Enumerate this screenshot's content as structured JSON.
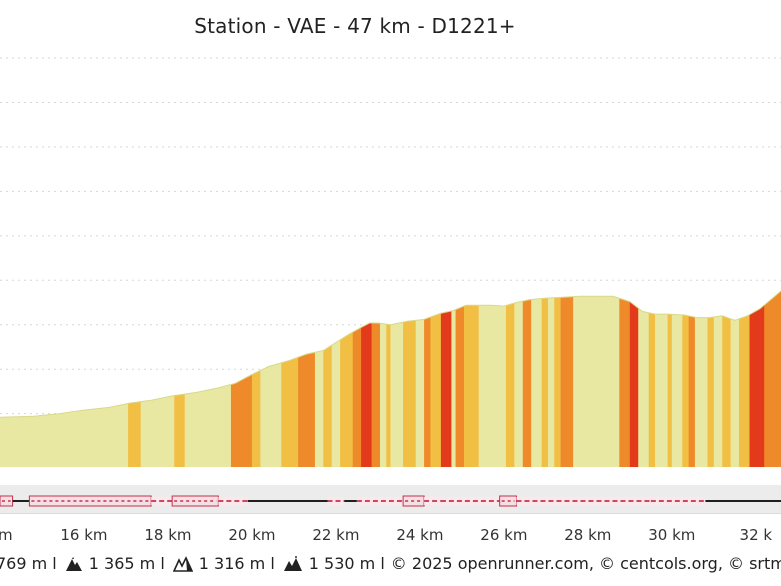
{
  "chart_data": {
    "type": "area",
    "title": "Station - VAE - 47 km - D1221+",
    "xlabel": "",
    "ylabel": "",
    "x_unit": "km",
    "xlim": [
      14,
      32.6
    ],
    "ylim": [
      1240,
      1700
    ],
    "grid": true,
    "x_ticks": [
      "16 km",
      "18 km",
      "20 km",
      "22 km",
      "24 km",
      "26 km",
      "28 km",
      "30 km",
      "32 k"
    ],
    "x_tick_values": [
      16,
      18,
      20,
      22,
      24,
      26,
      28,
      30,
      32
    ],
    "left_edge_label": "m",
    "profile": {
      "x": [
        14.0,
        14.8,
        15.4,
        16.0,
        16.6,
        17.1,
        17.6,
        18.1,
        18.7,
        19.2,
        19.6,
        20.0,
        20.4,
        20.9,
        21.3,
        21.7,
        22.0,
        22.3,
        22.6,
        22.8,
        23.0,
        23.3,
        23.7,
        24.1,
        24.5,
        24.8,
        25.1,
        25.4,
        25.7,
        26.0,
        26.3,
        26.6,
        27.0,
        27.4,
        27.8,
        28.2,
        28.6,
        29.0,
        29.3,
        29.6,
        29.9,
        30.3,
        30.6,
        30.9,
        31.2,
        31.5,
        31.8,
        32.1,
        32.4,
        32.6
      ],
      "y": [
        1296,
        1297,
        1300,
        1304,
        1307,
        1312,
        1315,
        1320,
        1324,
        1329,
        1334,
        1344,
        1353,
        1360,
        1367,
        1371,
        1380,
        1389,
        1397,
        1402,
        1402,
        1400,
        1404,
        1406,
        1413,
        1416,
        1422,
        1422,
        1422,
        1421,
        1425,
        1428,
        1430,
        1431,
        1432,
        1432,
        1432,
        1426,
        1415,
        1412,
        1412,
        1411,
        1408,
        1408,
        1410,
        1405,
        1410,
        1418,
        1430,
        1438
      ]
    },
    "slope_colors": {
      "easy": "#e8e8a2",
      "moderate": "#f2bf45",
      "steep": "#ee8a2a",
      "very_steep": "#e33a1c"
    },
    "slope_segments": [
      {
        "x0": 14.0,
        "x1": 17.05,
        "level": "easy"
      },
      {
        "x0": 17.05,
        "x1": 17.35,
        "level": "moderate"
      },
      {
        "x0": 17.35,
        "x1": 18.15,
        "level": "easy"
      },
      {
        "x0": 18.15,
        "x1": 18.4,
        "level": "moderate"
      },
      {
        "x0": 18.4,
        "x1": 19.5,
        "level": "easy"
      },
      {
        "x0": 19.5,
        "x1": 20.0,
        "level": "steep"
      },
      {
        "x0": 20.0,
        "x1": 20.2,
        "level": "moderate"
      },
      {
        "x0": 20.2,
        "x1": 20.7,
        "level": "easy"
      },
      {
        "x0": 20.7,
        "x1": 21.1,
        "level": "moderate"
      },
      {
        "x0": 21.1,
        "x1": 21.5,
        "level": "steep"
      },
      {
        "x0": 21.5,
        "x1": 21.7,
        "level": "easy"
      },
      {
        "x0": 21.7,
        "x1": 21.9,
        "level": "moderate"
      },
      {
        "x0": 21.9,
        "x1": 22.1,
        "level": "easy"
      },
      {
        "x0": 22.1,
        "x1": 22.4,
        "level": "moderate"
      },
      {
        "x0": 22.4,
        "x1": 22.6,
        "level": "steep"
      },
      {
        "x0": 22.6,
        "x1": 22.85,
        "level": "very_steep"
      },
      {
        "x0": 22.85,
        "x1": 23.05,
        "level": "steep"
      },
      {
        "x0": 23.05,
        "x1": 23.2,
        "level": "easy"
      },
      {
        "x0": 23.2,
        "x1": 23.3,
        "level": "moderate"
      },
      {
        "x0": 23.3,
        "x1": 23.6,
        "level": "easy"
      },
      {
        "x0": 23.6,
        "x1": 23.9,
        "level": "moderate"
      },
      {
        "x0": 23.9,
        "x1": 24.1,
        "level": "easy"
      },
      {
        "x0": 24.1,
        "x1": 24.25,
        "level": "steep"
      },
      {
        "x0": 24.25,
        "x1": 24.5,
        "level": "moderate"
      },
      {
        "x0": 24.5,
        "x1": 24.75,
        "level": "very_steep"
      },
      {
        "x0": 24.75,
        "x1": 24.85,
        "level": "easy"
      },
      {
        "x0": 24.85,
        "x1": 25.05,
        "level": "steep"
      },
      {
        "x0": 25.05,
        "x1": 25.4,
        "level": "moderate"
      },
      {
        "x0": 25.4,
        "x1": 26.05,
        "level": "easy"
      },
      {
        "x0": 26.05,
        "x1": 26.25,
        "level": "moderate"
      },
      {
        "x0": 26.25,
        "x1": 26.45,
        "level": "easy"
      },
      {
        "x0": 26.45,
        "x1": 26.65,
        "level": "steep"
      },
      {
        "x0": 26.65,
        "x1": 26.9,
        "level": "easy"
      },
      {
        "x0": 26.9,
        "x1": 27.05,
        "level": "moderate"
      },
      {
        "x0": 27.05,
        "x1": 27.2,
        "level": "easy"
      },
      {
        "x0": 27.2,
        "x1": 27.35,
        "level": "moderate"
      },
      {
        "x0": 27.35,
        "x1": 27.65,
        "level": "steep"
      },
      {
        "x0": 27.65,
        "x1": 28.75,
        "level": "easy"
      },
      {
        "x0": 28.75,
        "x1": 29.0,
        "level": "steep"
      },
      {
        "x0": 29.0,
        "x1": 29.2,
        "level": "very_steep"
      },
      {
        "x0": 29.2,
        "x1": 29.45,
        "level": "easy"
      },
      {
        "x0": 29.45,
        "x1": 29.6,
        "level": "moderate"
      },
      {
        "x0": 29.6,
        "x1": 29.9,
        "level": "easy"
      },
      {
        "x0": 29.9,
        "x1": 30.0,
        "level": "moderate"
      },
      {
        "x0": 30.0,
        "x1": 30.25,
        "level": "easy"
      },
      {
        "x0": 30.25,
        "x1": 30.4,
        "level": "moderate"
      },
      {
        "x0": 30.4,
        "x1": 30.55,
        "level": "steep"
      },
      {
        "x0": 30.55,
        "x1": 30.85,
        "level": "easy"
      },
      {
        "x0": 30.85,
        "x1": 31.0,
        "level": "moderate"
      },
      {
        "x0": 31.0,
        "x1": 31.2,
        "level": "easy"
      },
      {
        "x0": 31.2,
        "x1": 31.4,
        "level": "moderate"
      },
      {
        "x0": 31.4,
        "x1": 31.6,
        "level": "easy"
      },
      {
        "x0": 31.6,
        "x1": 31.85,
        "level": "moderate"
      },
      {
        "x0": 31.85,
        "x1": 32.2,
        "level": "very_steep"
      },
      {
        "x0": 32.2,
        "x1": 32.6,
        "level": "steep"
      }
    ],
    "surface_track": [
      {
        "x0": 14.0,
        "x1": 14.3,
        "style": "unpaved"
      },
      {
        "x0": 14.3,
        "x1": 14.7,
        "style": "paved"
      },
      {
        "x0": 14.7,
        "x1": 17.6,
        "style": "unpaved"
      },
      {
        "x0": 17.6,
        "x1": 18.1,
        "style": "mixed"
      },
      {
        "x0": 18.1,
        "x1": 19.2,
        "style": "unpaved"
      },
      {
        "x0": 19.2,
        "x1": 19.9,
        "style": "mixed"
      },
      {
        "x0": 19.9,
        "x1": 21.8,
        "style": "paved"
      },
      {
        "x0": 21.8,
        "x1": 22.2,
        "style": "mixed"
      },
      {
        "x0": 22.2,
        "x1": 22.5,
        "style": "paved"
      },
      {
        "x0": 22.5,
        "x1": 23.6,
        "style": "mixed"
      },
      {
        "x0": 23.6,
        "x1": 24.1,
        "style": "unpaved"
      },
      {
        "x0": 24.1,
        "x1": 24.5,
        "style": "mixed"
      },
      {
        "x0": 24.5,
        "x1": 25.9,
        "style": "mixed"
      },
      {
        "x0": 25.9,
        "x1": 26.3,
        "style": "unpaved"
      },
      {
        "x0": 26.3,
        "x1": 29.5,
        "style": "mixed"
      },
      {
        "x0": 29.5,
        "x1": 30.8,
        "style": "mixed"
      },
      {
        "x0": 30.8,
        "x1": 32.6,
        "style": "paved"
      }
    ]
  },
  "footer": {
    "stat_1": "769 m l",
    "stat_2": "1 365 m l",
    "stat_3": "1 316 m l",
    "stat_4": "1 530 m l",
    "credits": "© 2025 openrunner.com, © centcols.org, © srtm na"
  }
}
